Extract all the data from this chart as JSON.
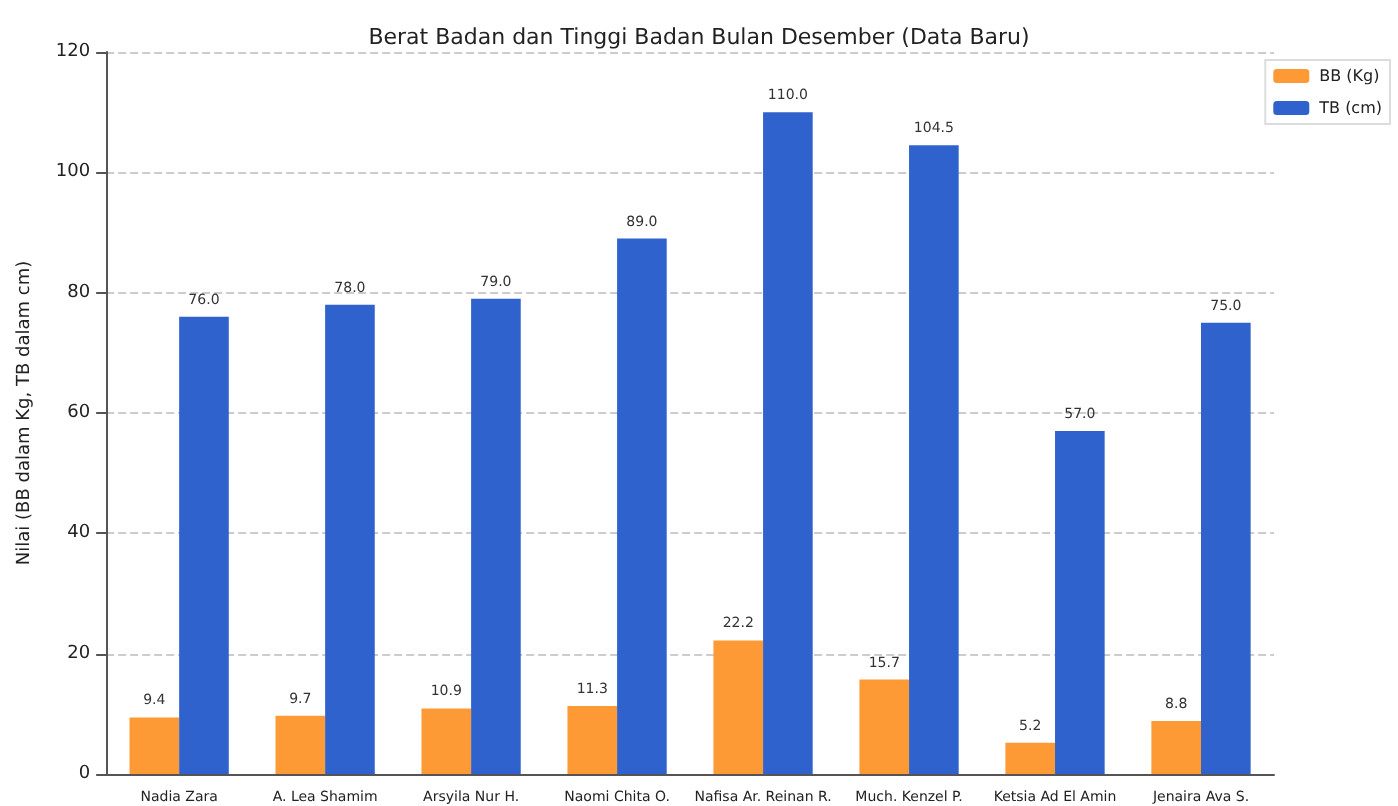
{
  "chart_data": {
    "type": "bar",
    "title": "Berat Badan dan Tinggi Badan Bulan Desember (Data Baru)",
    "ylabel": "Nilai (BB dalam Kg, TB dalam cm)",
    "categories": [
      "Nadia Zara",
      "A. Lea Shamim",
      "Arsyila Nur H.",
      "Naomi Chita O.",
      "Nafisa Ar. Reinan R.",
      "Much. Kenzel P.",
      "Ketsia Ad El Amin",
      "Jenaira Ava S."
    ],
    "series": [
      {
        "name": "BB (Kg)",
        "color": "#fd9a35",
        "values": [
          9.4,
          9.7,
          10.9,
          11.3,
          22.2,
          15.7,
          5.2,
          8.8
        ],
        "value_labels": [
          "9.4",
          "9.7",
          "10.9",
          "11.3",
          "22.2",
          "15.7",
          "5.2",
          "8.8"
        ]
      },
      {
        "name": "TB (cm)",
        "color": "#2f62cc",
        "values": [
          76.0,
          78.0,
          79.0,
          89.0,
          110.0,
          104.5,
          57.0,
          75.0
        ],
        "value_labels": [
          "76.0",
          "78.0",
          "79.0",
          "89.0",
          "110.0",
          "104.5",
          "57.0",
          "75.0"
        ]
      }
    ],
    "ylim": [
      0,
      120
    ],
    "yticks": [
      0,
      20,
      40,
      60,
      80,
      100,
      120
    ],
    "grid": "y",
    "legend": "top right"
  }
}
